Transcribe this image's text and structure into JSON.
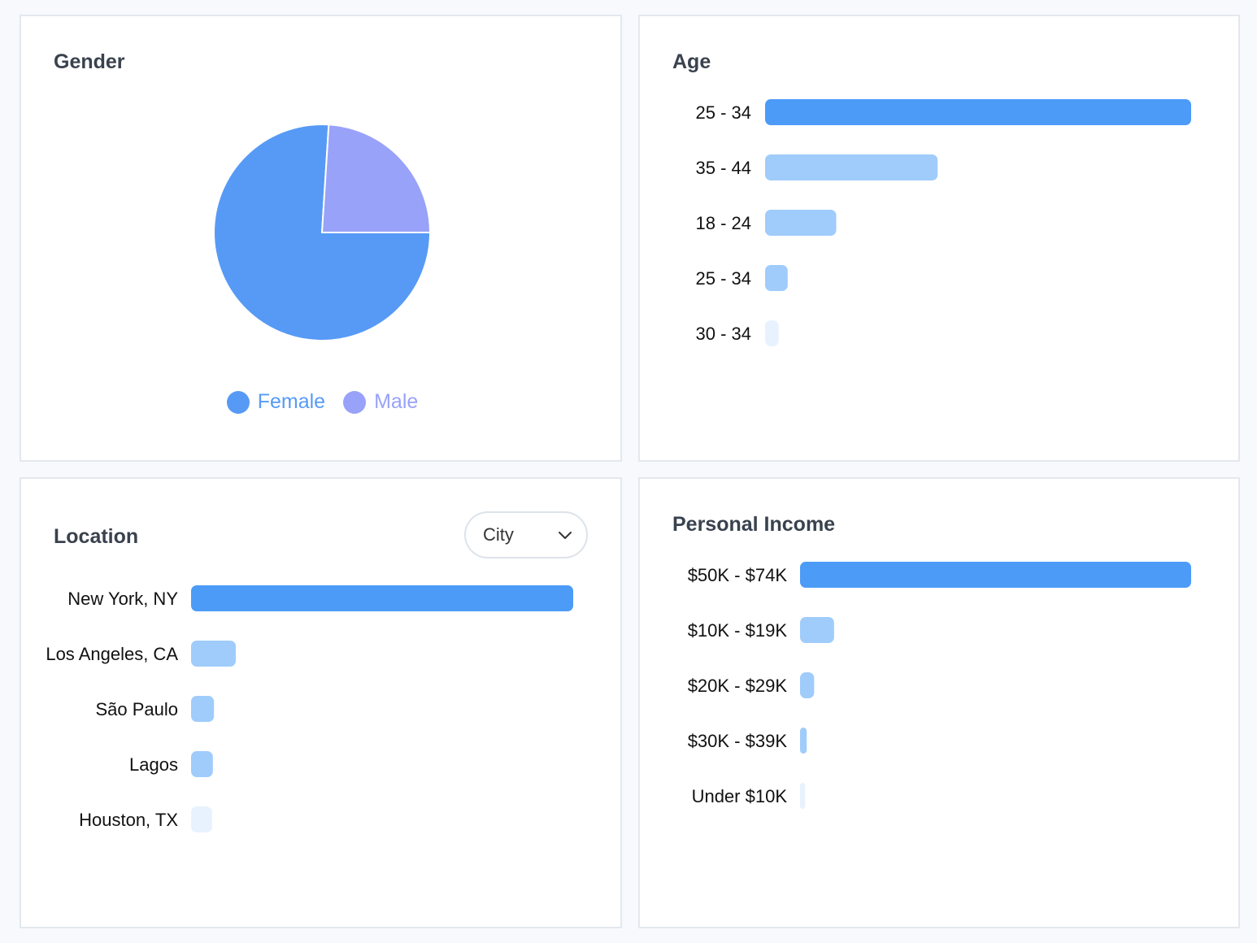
{
  "colors": {
    "primary": "#4c9bf7",
    "light": "#9fccfb",
    "faint": "#e8f2fe",
    "female": "#579af5",
    "male": "#98a2f9"
  },
  "gender": {
    "title": "Gender",
    "chart_data": {
      "type": "pie",
      "slices": [
        {
          "label": "Female",
          "value": 76,
          "color": "#579af5"
        },
        {
          "label": "Male",
          "value": 24,
          "color": "#98a2f9"
        }
      ]
    }
  },
  "age": {
    "title": "Age",
    "chart_data": {
      "type": "bar",
      "orientation": "horizontal",
      "categories": [
        "25 - 34",
        "35 - 44",
        "18 - 24",
        "25 - 34",
        "30 - 34"
      ],
      "values": [
        100,
        40.5,
        16.7,
        5.3,
        3.2
      ],
      "colors": [
        "#4c9bf7",
        "#9fccfb",
        "#9fccfb",
        "#9fccfb",
        "#e8f2fe"
      ]
    }
  },
  "location": {
    "title": "Location",
    "select": {
      "value": "City"
    },
    "chart_data": {
      "type": "bar",
      "orientation": "horizontal",
      "categories": [
        "New York, NY",
        "Los Angeles, CA",
        "São Paulo",
        "Lagos",
        "Houston, TX"
      ],
      "values": [
        100,
        11.7,
        6,
        5.7,
        5.5
      ],
      "colors": [
        "#4c9bf7",
        "#9fccfb",
        "#9fccfb",
        "#9fccfb",
        "#e8f2fe"
      ]
    }
  },
  "income": {
    "title": "Personal Income",
    "chart_data": {
      "type": "bar",
      "orientation": "horizontal",
      "categories": [
        "$50K - $74K",
        "$10K - $19K",
        "$20K - $29K",
        "$30K - $39K",
        "Under $10K"
      ],
      "values": [
        100,
        8.7,
        3.6,
        1.7,
        1.3
      ],
      "colors": [
        "#4c9bf7",
        "#9fccfb",
        "#9fccfb",
        "#9fccfb",
        "#e8f2fe"
      ]
    }
  }
}
